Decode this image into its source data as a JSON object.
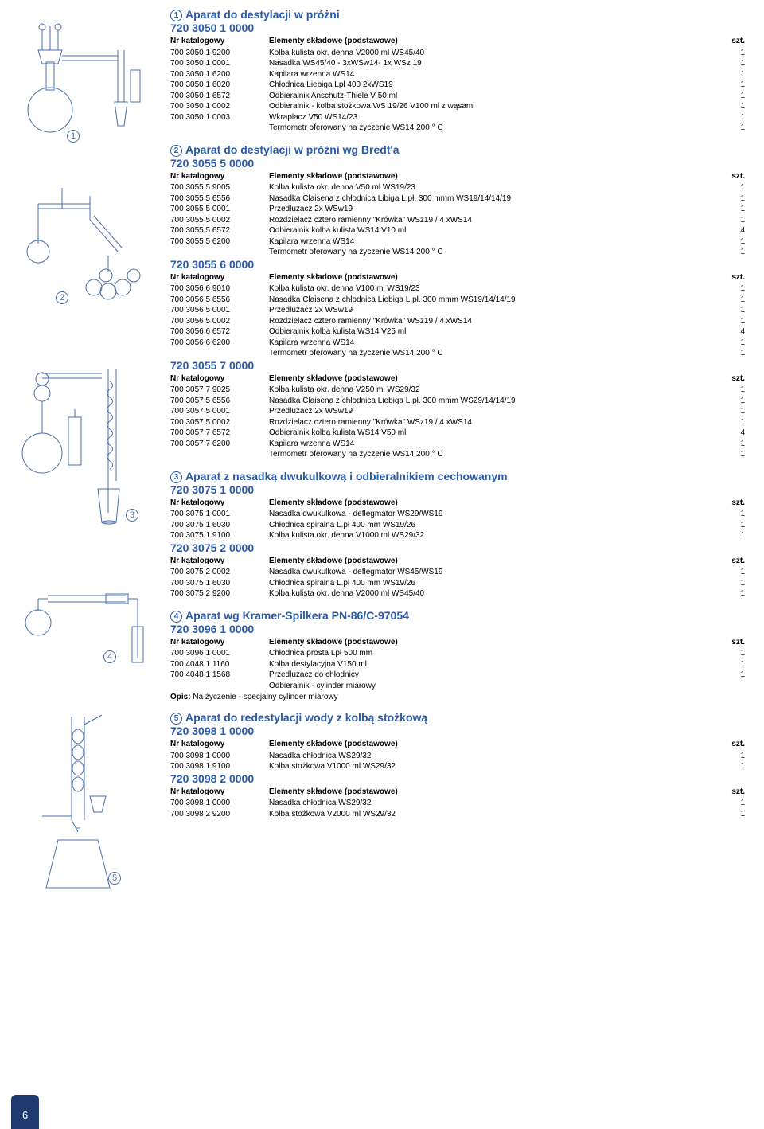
{
  "page_number": "6",
  "colors": {
    "accent": "#2a5aa5",
    "tab_bg": "#1e3a6e",
    "tab_text": "#ffffff",
    "line": "#4a6faa"
  },
  "diagrams": [
    {
      "label": "1"
    },
    {
      "label": "2"
    },
    {
      "label": "3"
    },
    {
      "label": "4"
    },
    {
      "label": "5"
    }
  ],
  "sections": [
    {
      "circled": "1",
      "title": "Aparat do destylacji w próżni",
      "codes": [
        {
          "code": "720 3050 1 0000",
          "header": [
            "Nr katalogowy",
            "Elementy składowe (podstawowe)",
            "szt."
          ],
          "rows": [
            [
              "700 3050 1 9200",
              "Kolba kulista okr. denna V2000 ml WS45/40",
              "1"
            ],
            [
              "700 3050 1 0001",
              "Nasadka WS45/40 - 3xWSw14- 1x WSz 19",
              "1"
            ],
            [
              "700 3050 1 6200",
              "Kapilara wrzenna WS14",
              "1"
            ],
            [
              "700 3050 1 6020",
              "Chłodnica Liebiga Lpł 400 2xWS19",
              "1"
            ],
            [
              "700 3050 1 6572",
              "Odbieralnik Anschutz-Thiele V 50 ml",
              "1"
            ],
            [
              "700 3050 1 0002",
              "Odbieralnik - kolba stożkowa WS 19/26 V100 ml z wąsami",
              "1"
            ],
            [
              "700 3050 1 0003",
              "Wkraplacz V50 WS14/23",
              "1"
            ],
            [
              "",
              "Termometr oferowany na życzenie WS14 200 ° C",
              "1"
            ]
          ]
        }
      ]
    },
    {
      "circled": "2",
      "title": "Aparat do destylacji w próżni wg Bredt'a",
      "codes": [
        {
          "code": "720 3055 5 0000",
          "header": [
            "Nr katalogowy",
            "Elementy składowe (podstawowe)",
            "szt."
          ],
          "rows": [
            [
              "700 3055 5 9005",
              "Kolba kulista okr. denna V50 ml WS19/23",
              "1"
            ],
            [
              "700 3055 5 6556",
              "Nasadka Claisena z chłodnica Libiga L.pł. 300 mmm WS19/14/14/19",
              "1"
            ],
            [
              "700 3055 5 0001",
              "Przedłużacz 2x WSw19",
              "1"
            ],
            [
              "700 3055 5 0002",
              "Rozdzielacz cztero ramienny \"Krówka\" WSz19 / 4 xWS14",
              "1"
            ],
            [
              "700 3055 5 6572",
              "Odbieralnik kolba kulista WS14 V10 ml",
              "4"
            ],
            [
              "700 3055 5 6200",
              "Kapilara wrzenna WS14",
              "1"
            ],
            [
              "",
              "Termometr oferowany na życzenie WS14 200 ° C",
              "1"
            ]
          ]
        },
        {
          "code": "720 3055 6 0000",
          "header": [
            "Nr katalogowy",
            "Elementy składowe (podstawowe)",
            "szt."
          ],
          "rows": [
            [
              "700 3056 6 9010",
              "Kolba kulista okr. denna V100 ml WS19/23",
              "1"
            ],
            [
              "700 3056 5 6556",
              "Nasadka Claisena z chłodnica Liebiga L.pł. 300 mmm WS19/14/14/19",
              "1"
            ],
            [
              "700 3056 5 0001",
              "Przedłużacz 2x WSw19",
              "1"
            ],
            [
              "700 3056 5 0002",
              "Rozdzielacz cztero ramienny \"Krówka\" WSz19 / 4 xWS14",
              "1"
            ],
            [
              "700 3056 6 6572",
              "Odbieralnik kolba kulista WS14 V25 ml",
              "4"
            ],
            [
              "700 3056 6 6200",
              "Kapilara wrzenna WS14",
              "1"
            ],
            [
              "",
              "Termometr oferowany na życzenie WS14 200 ° C",
              "1"
            ]
          ]
        },
        {
          "code": "720 3055 7 0000",
          "header": [
            "Nr katalogowy",
            "Elementy składowe (podstawowe)",
            "szt."
          ],
          "rows": [
            [
              "700 3057 7 9025",
              "Kolba kulista okr. denna V250 ml WS29/32",
              "1"
            ],
            [
              "700 3057 5 6556",
              "Nasadka Claisena z chłodnica Liebiga L.pł. 300 mmm WS29/14/14/19",
              "1"
            ],
            [
              "700 3057 5 0001",
              "Przedłużacz 2x WSw19",
              "1"
            ],
            [
              "700 3057 5 0002",
              "Rozdzielacz cztero ramienny \"Krówka\" WSz19 / 4 xWS14",
              "1"
            ],
            [
              "700 3057 7 6572",
              "Odbieralnik kolba kulista WS14 V50 ml",
              "4"
            ],
            [
              "700 3057 7 6200",
              "Kapilara wrzenna WS14",
              "1"
            ],
            [
              "",
              "Termometr oferowany na życzenie WS14 200 ° C",
              "1"
            ]
          ]
        }
      ]
    },
    {
      "circled": "3",
      "title": "Aparat z nasadką dwukulkową i odbieralnikiem cechowanym",
      "codes": [
        {
          "code": "720 3075 1 0000",
          "header": [
            "Nr katalogowy",
            "Elementy składowe (podstawowe)",
            "szt."
          ],
          "rows": [
            [
              "700 3075 1 0001",
              "Nasadka dwukulkowa - deflegmator WS29/WS19",
              "1"
            ],
            [
              "700 3075 1 6030",
              "Chłodnica spiralna L.pł 400 mm  WS19/26",
              "1"
            ],
            [
              "700 3075 1 9100",
              "Kolba kulista okr. denna V1000 ml WS29/32",
              "1"
            ]
          ]
        },
        {
          "code": "720 3075 2 0000",
          "header": [
            "Nr katalogowy",
            "Elementy składowe (podstawowe)",
            "szt."
          ],
          "rows": [
            [
              "700 3075 2 0002",
              "Nasadka dwukulkowa - deflegmator WS45/WS19",
              "1"
            ],
            [
              "700 3075 1 6030",
              "Chłodnica spiralna L.pł 400 mm  WS19/26",
              "1"
            ],
            [
              "700 3075 2 9200",
              "Kolba kulista okr. denna V2000 ml WS45/40",
              "1"
            ]
          ]
        }
      ]
    },
    {
      "circled": "4",
      "title": "Aparat wg Kramer-Spilkera PN-86/C-97054",
      "codes": [
        {
          "code": "720 3096 1 0000",
          "header": [
            "Nr katalogowy",
            "Elementy składowe (podstawowe)",
            "szt."
          ],
          "rows": [
            [
              "700 3096 1 0001",
              "Chłodnica prosta Lpł 500 mm",
              "1"
            ],
            [
              "700 4048 1 1160",
              "Kolba destylacyjna V150 ml",
              "1"
            ],
            [
              "700 4048 1 1568",
              "Przedłużacz do chłodnicy",
              "1"
            ],
            [
              "",
              "Odbieralnik - cylinder miarowy",
              ""
            ]
          ],
          "note_label": "Opis:",
          "note_text": "Na życzenie - specjalny cylinder miarowy"
        }
      ]
    },
    {
      "circled": "5",
      "title": "Aparat do redestylacji wody z kolbą stożkową",
      "codes": [
        {
          "code": "720 3098 1 0000",
          "header": [
            "Nr katalogowy",
            "Elementy składowe (podstawowe)",
            "szt."
          ],
          "rows": [
            [
              "700 3098 1 0000",
              "Nasadka chłodnica  WS29/32",
              "1"
            ],
            [
              "700 3098 1 9100",
              "Kolba stożkowa V1000 ml WS29/32",
              "1"
            ]
          ]
        },
        {
          "code": "720 3098 2 0000",
          "header": [
            "Nr katalogowy",
            "Elementy składowe (podstawowe)",
            "szt."
          ],
          "rows": [
            [
              "700 3098 1 0000",
              "Nasadka chłodnica  WS29/32",
              "1"
            ],
            [
              "700 3098 2 9200",
              "Kolba stożkowa V2000 ml WS29/32",
              "1"
            ]
          ]
        }
      ]
    }
  ]
}
